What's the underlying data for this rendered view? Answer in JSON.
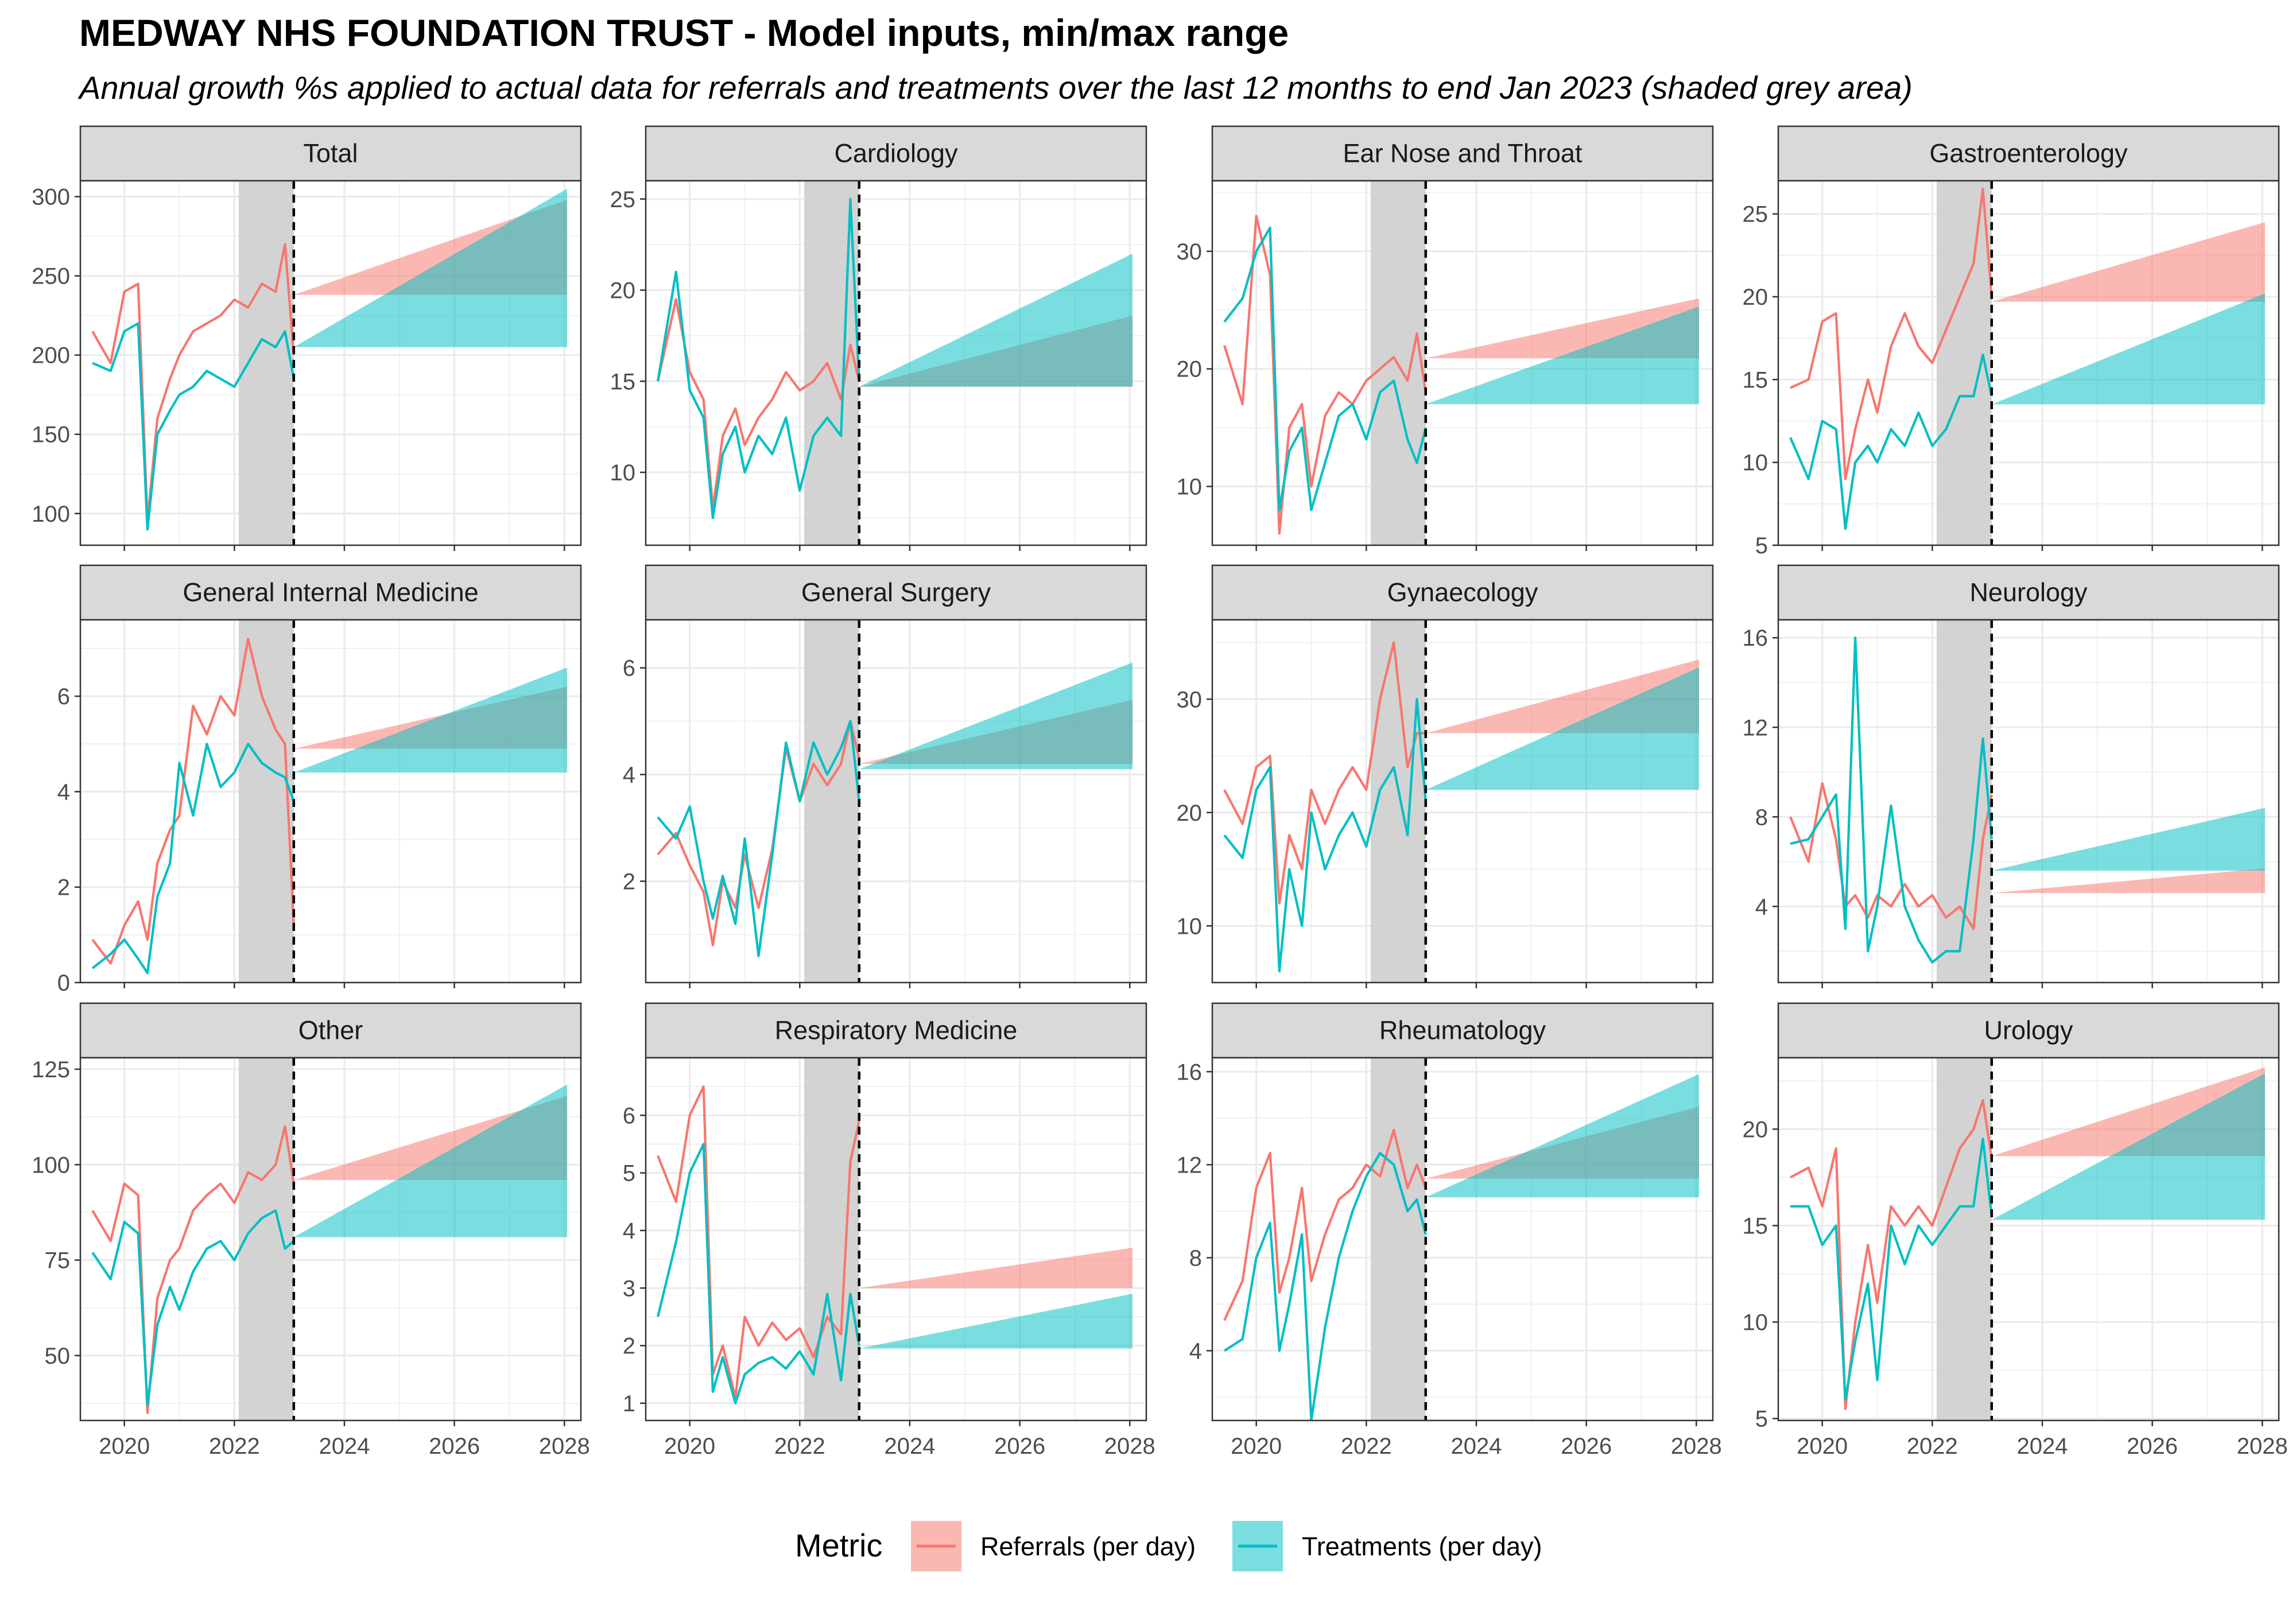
{
  "title": "MEDWAY NHS FOUNDATION TRUST - Model inputs, min/max range",
  "subtitle": "Annual growth %s applied to actual data for referrals and treatments over the last 12 months to end Jan 2023 (shaded grey area)",
  "legend": {
    "title": "Metric",
    "items": [
      {
        "label": "Referrals (per day)",
        "color": "#F8766D"
      },
      {
        "label": "Treatments (per day)",
        "color": "#00BFC4"
      }
    ]
  },
  "chart_data": {
    "type": "line",
    "layout": "facet-grid-3x4",
    "xlim": [
      2019.2,
      2028.3
    ],
    "x_ticks": [
      2020,
      2022,
      2024,
      2026,
      2028
    ],
    "x_tick_labels": [
      "2020",
      "2022",
      "2024",
      "2026",
      "2028"
    ],
    "shaded_period": [
      2022.08,
      2023.08
    ],
    "vline_x": 2023.08,
    "projection_end_x": 2028.05,
    "x_dates": [
      2019.42,
      2019.75,
      2020.0,
      2020.25,
      2020.42,
      2020.6,
      2020.83,
      2021.0,
      2021.25,
      2021.5,
      2021.75,
      2022.0,
      2022.25,
      2022.5,
      2022.75,
      2022.92,
      2023.08
    ],
    "series_names": [
      "Referrals (per day)",
      "Treatments (per day)"
    ],
    "grid": true,
    "legend_position": "bottom",
    "facets": [
      {
        "name": "Total",
        "ylim": [
          80,
          310
        ],
        "y_ticks": [
          100,
          150,
          200,
          250,
          300
        ],
        "referrals": [
          215,
          195,
          240,
          245,
          95,
          160,
          185,
          200,
          215,
          220,
          225,
          235,
          230,
          245,
          240,
          270,
          200
        ],
        "treatments": [
          195,
          190,
          215,
          220,
          90,
          150,
          165,
          175,
          180,
          190,
          185,
          180,
          195,
          210,
          205,
          215,
          185
        ],
        "ref_band": {
          "base": 238,
          "min_end": 238,
          "max_end": 298
        },
        "trt_band": {
          "base": 205,
          "min_end": 205,
          "max_end": 305
        }
      },
      {
        "name": "Cardiology",
        "ylim": [
          6,
          26
        ],
        "y_ticks": [
          10,
          15,
          20,
          25
        ],
        "referrals": [
          15,
          19.5,
          15.5,
          14,
          8,
          12,
          13.5,
          11.5,
          13,
          14,
          15.5,
          14.5,
          15,
          16,
          14,
          17,
          15
        ],
        "treatments": [
          15,
          21,
          14.5,
          13,
          7.5,
          11,
          12.5,
          10,
          12,
          11,
          13,
          9,
          12,
          13,
          12,
          25,
          15
        ],
        "ref_band": {
          "base": 14.7,
          "min_end": 14.7,
          "max_end": 18.6
        },
        "trt_band": {
          "base": 14.7,
          "min_end": 14.7,
          "max_end": 22
        }
      },
      {
        "name": "Ear Nose and Throat",
        "ylim": [
          5,
          36
        ],
        "y_ticks": [
          10,
          20,
          30
        ],
        "referrals": [
          22,
          17,
          33,
          28,
          6,
          15,
          17,
          10,
          16,
          18,
          17,
          19,
          20,
          21,
          19,
          23,
          18
        ],
        "treatments": [
          24,
          26,
          30,
          32,
          8,
          13,
          15,
          8,
          12,
          16,
          17,
          14,
          18,
          19,
          14,
          12,
          15
        ],
        "ref_band": {
          "base": 20.9,
          "min_end": 20.9,
          "max_end": 26
        },
        "trt_band": {
          "base": 17,
          "min_end": 17,
          "max_end": 25.3
        }
      },
      {
        "name": "Gastroenterology",
        "ylim": [
          5,
          27
        ],
        "y_ticks": [
          5,
          10,
          15,
          20,
          25
        ],
        "referrals": [
          14.5,
          15,
          18.5,
          19,
          9,
          12,
          15,
          13,
          17,
          19,
          17,
          16,
          18,
          20,
          22,
          26.5,
          20
        ],
        "treatments": [
          11.5,
          9,
          12.5,
          12,
          6,
          10,
          11,
          10,
          12,
          11,
          13,
          11,
          12,
          14,
          14,
          16.5,
          14
        ],
        "ref_band": {
          "base": 19.7,
          "min_end": 19.7,
          "max_end": 24.5
        },
        "trt_band": {
          "base": 13.5,
          "min_end": 13.5,
          "max_end": 20.2
        }
      },
      {
        "name": "General Internal Medicine",
        "ylim": [
          0,
          7.6
        ],
        "y_ticks": [
          0,
          2,
          4,
          6
        ],
        "referrals": [
          0.9,
          0.4,
          1.2,
          1.7,
          0.9,
          2.5,
          3.2,
          3.5,
          5.8,
          5.2,
          6.0,
          5.6,
          7.2,
          6.0,
          5.3,
          5.0,
          1.2
        ],
        "treatments": [
          0.3,
          0.6,
          0.9,
          0.5,
          0.2,
          1.8,
          2.5,
          4.6,
          3.5,
          5.0,
          4.1,
          4.4,
          5.0,
          4.6,
          4.4,
          4.3,
          3.8
        ],
        "ref_band": {
          "base": 4.9,
          "min_end": 4.9,
          "max_end": 6.2
        },
        "trt_band": {
          "base": 4.4,
          "min_end": 4.4,
          "max_end": 6.6
        }
      },
      {
        "name": "General Surgery",
        "ylim": [
          0.1,
          6.9
        ],
        "y_ticks": [
          2,
          4,
          6
        ],
        "referrals": [
          2.5,
          2.9,
          2.3,
          1.8,
          0.8,
          2.0,
          1.5,
          2.5,
          1.5,
          2.6,
          4.5,
          3.5,
          4.2,
          3.8,
          4.2,
          5.0,
          4.3
        ],
        "treatments": [
          3.2,
          2.8,
          3.4,
          2.0,
          1.3,
          2.1,
          1.2,
          2.8,
          0.6,
          2.5,
          4.6,
          3.5,
          4.6,
          4.0,
          4.5,
          5.0,
          3.5
        ],
        "ref_band": {
          "base": 4.2,
          "min_end": 4.2,
          "max_end": 5.4
        },
        "trt_band": {
          "base": 4.1,
          "min_end": 4.1,
          "max_end": 6.1
        }
      },
      {
        "name": "Gynaecology",
        "ylim": [
          5,
          37
        ],
        "y_ticks": [
          10,
          20,
          30
        ],
        "referrals": [
          22,
          19,
          24,
          25,
          12,
          18,
          15,
          22,
          19,
          22,
          24,
          22,
          30,
          35,
          24,
          27,
          27
        ],
        "treatments": [
          18,
          16,
          22,
          24,
          6,
          15,
          10,
          20,
          15,
          18,
          20,
          17,
          22,
          24,
          18,
          30,
          21
        ],
        "ref_band": {
          "base": 27,
          "min_end": 27,
          "max_end": 33.5
        },
        "trt_band": {
          "base": 22,
          "min_end": 22,
          "max_end": 32.8
        }
      },
      {
        "name": "Neurology",
        "ylim": [
          0.6,
          16.8
        ],
        "y_ticks": [
          4,
          8,
          12,
          16
        ],
        "referrals": [
          8,
          6,
          9.5,
          7,
          4,
          4.5,
          3.5,
          4.5,
          4,
          5,
          4,
          4.5,
          3.5,
          4,
          3,
          7,
          9
        ],
        "treatments": [
          6.8,
          7,
          8,
          9,
          3,
          16,
          2,
          4,
          8.5,
          4,
          2.5,
          1.5,
          2,
          2,
          7,
          11.5,
          7
        ],
        "ref_band": {
          "base": 4.6,
          "min_end": 4.6,
          "max_end": 5.7
        },
        "trt_band": {
          "base": 5.6,
          "min_end": 5.6,
          "max_end": 8.4
        }
      },
      {
        "name": "Other",
        "ylim": [
          33,
          128
        ],
        "y_ticks": [
          50,
          75,
          100,
          125
        ],
        "referrals": [
          88,
          80,
          95,
          92,
          35,
          65,
          75,
          78,
          88,
          92,
          95,
          90,
          98,
          96,
          100,
          110,
          95
        ],
        "treatments": [
          77,
          70,
          85,
          82,
          37,
          58,
          68,
          62,
          72,
          78,
          80,
          75,
          82,
          86,
          88,
          78,
          80
        ],
        "ref_band": {
          "base": 96,
          "min_end": 96,
          "max_end": 118
        },
        "trt_band": {
          "base": 81,
          "min_end": 81,
          "max_end": 121
        }
      },
      {
        "name": "Respiratory Medicine",
        "ylim": [
          0.7,
          7.0
        ],
        "y_ticks": [
          1,
          2,
          3,
          4,
          5,
          6
        ],
        "referrals": [
          5.3,
          4.5,
          6.0,
          6.5,
          1.5,
          2.0,
          1.1,
          2.5,
          2.0,
          2.4,
          2.1,
          2.3,
          1.8,
          2.5,
          2.2,
          5.2,
          5.9
        ],
        "treatments": [
          2.5,
          3.8,
          5.0,
          5.5,
          1.2,
          1.8,
          1.0,
          1.5,
          1.7,
          1.8,
          1.6,
          1.9,
          1.5,
          2.9,
          1.4,
          2.9,
          2.0
        ],
        "ref_band": {
          "base": 3.0,
          "min_end": 3.0,
          "max_end": 3.7
        },
        "trt_band": {
          "base": 1.95,
          "min_end": 1.95,
          "max_end": 2.9
        }
      },
      {
        "name": "Rheumatology",
        "ylim": [
          1,
          16.6
        ],
        "y_ticks": [
          4,
          8,
          12,
          16
        ],
        "referrals": [
          5.3,
          7,
          11,
          12.5,
          6.5,
          8,
          11,
          7,
          9,
          10.5,
          11,
          12,
          11.5,
          13.5,
          11,
          12,
          11
        ],
        "treatments": [
          4,
          4.5,
          8,
          9.5,
          4,
          6,
          9,
          1,
          5,
          8,
          10,
          11.5,
          12.5,
          12,
          10,
          10.5,
          9
        ],
        "ref_band": {
          "base": 11.4,
          "min_end": 11.4,
          "max_end": 14.5
        },
        "trt_band": {
          "base": 10.6,
          "min_end": 10.6,
          "max_end": 15.9
        }
      },
      {
        "name": "Urology",
        "ylim": [
          4.9,
          23.7
        ],
        "y_ticks": [
          5,
          10,
          15,
          20
        ],
        "referrals": [
          17.5,
          18,
          16,
          19,
          5.5,
          10,
          14,
          11,
          16,
          15,
          16,
          15,
          17,
          19,
          20,
          21.5,
          18.5
        ],
        "treatments": [
          16,
          16,
          14,
          15,
          6,
          9,
          12,
          7,
          15,
          13,
          15,
          14,
          15,
          16,
          16,
          19.5,
          15.5
        ],
        "ref_band": {
          "base": 18.6,
          "min_end": 18.6,
          "max_end": 23.2
        },
        "trt_band": {
          "base": 15.3,
          "min_end": 15.3,
          "max_end": 22.9
        }
      }
    ]
  }
}
